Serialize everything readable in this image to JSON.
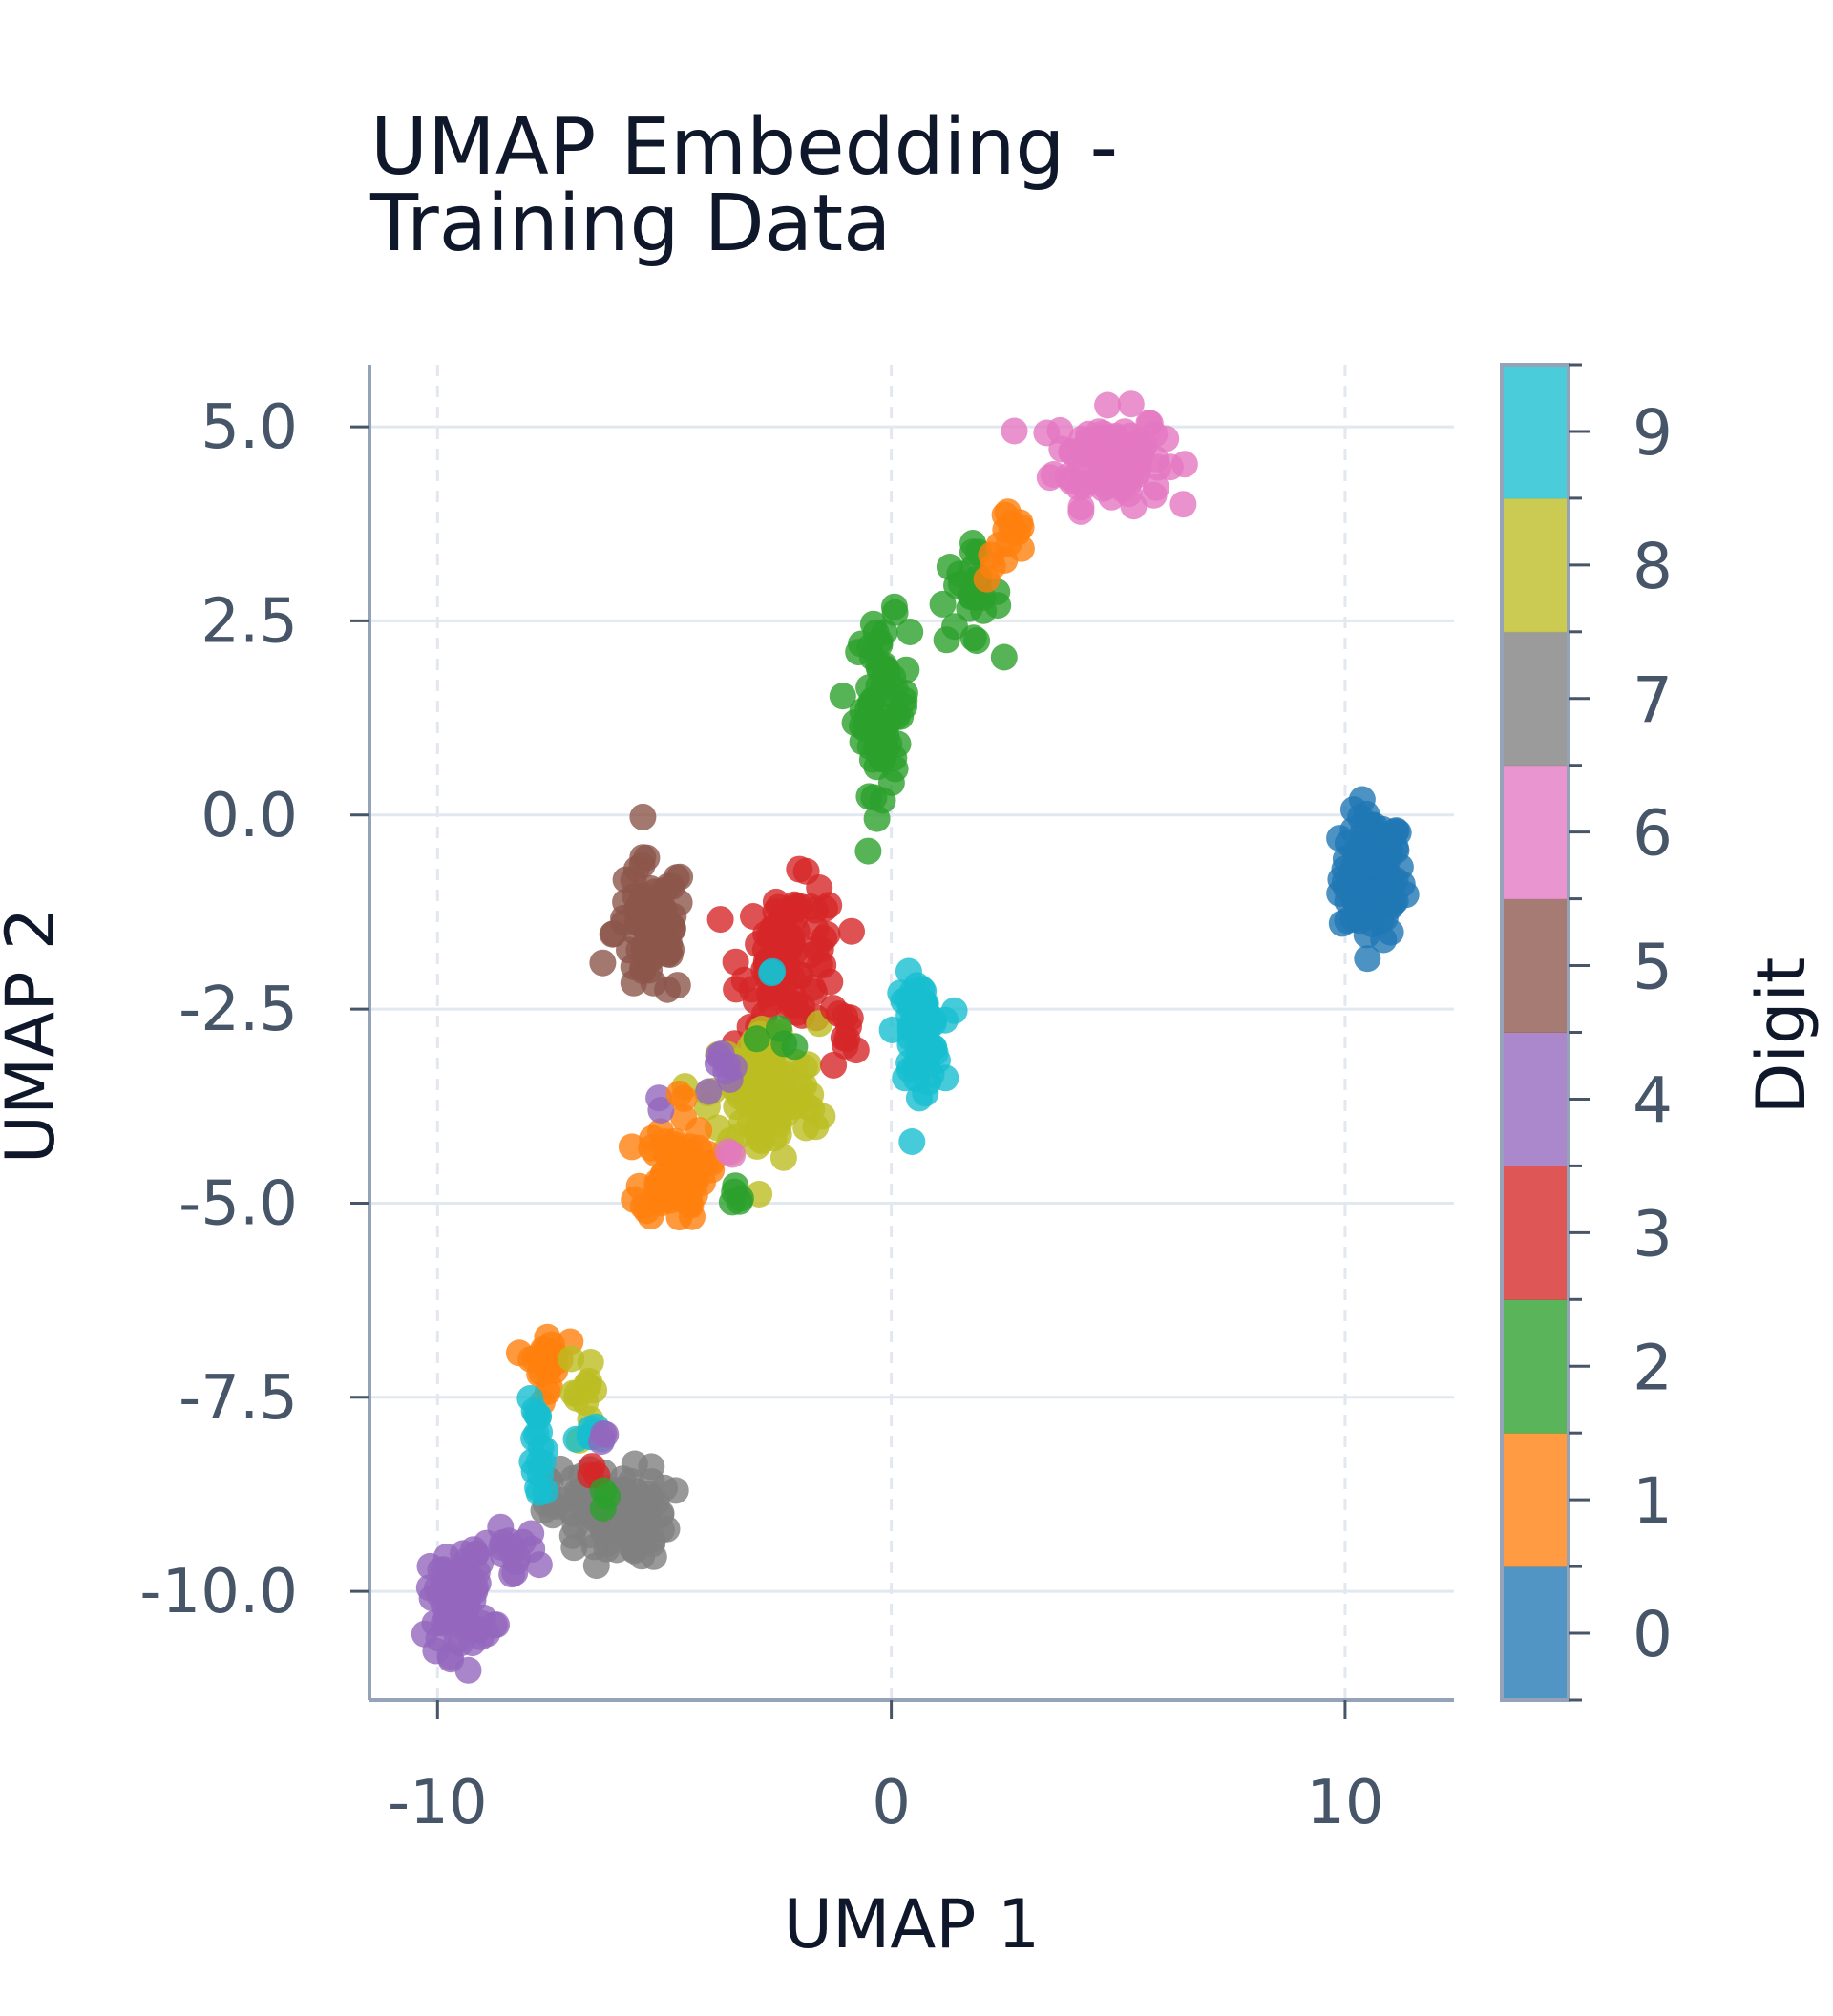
{
  "chart_data": {
    "type": "scatter",
    "title_lines": [
      "UMAP Embedding -",
      "Training Data"
    ],
    "xlabel": "UMAP 1",
    "ylabel": "UMAP 2",
    "xlim": [
      -11.5,
      12.4
    ],
    "ylim": [
      -11.4,
      5.8
    ],
    "xticks": [
      -10,
      0,
      10
    ],
    "xtick_labels": [
      "-10",
      "0",
      "10"
    ],
    "yticks": [
      5.0,
      2.5,
      0.0,
      -2.5,
      -5.0,
      -7.5,
      -10.0
    ],
    "ytick_labels": [
      "5.0",
      "2.5",
      "0.0",
      "-2.5",
      "-5.0",
      "-7.5",
      "-10.0"
    ],
    "grid": true,
    "colorbar": {
      "label": "Digit",
      "ticks": [
        "0",
        "1",
        "2",
        "3",
        "4",
        "5",
        "6",
        "7",
        "8",
        "9"
      ],
      "colors": [
        "#1f77b4",
        "#ff7f0e",
        "#2ca02c",
        "#d62728",
        "#9467bd",
        "#8c564b",
        "#e377c2",
        "#7f7f7f",
        "#bcbd22",
        "#17becf"
      ]
    },
    "clusters": [
      {
        "digit": 0,
        "cx": 10.6,
        "cy": -0.8,
        "sx": 0.35,
        "sy": 0.4,
        "n": 120
      },
      {
        "digit": 6,
        "cx": 4.8,
        "cy": 4.6,
        "sx": 0.6,
        "sy": 0.3,
        "n": 110
      },
      {
        "digit": 2,
        "cx": -0.2,
        "cy": 1.4,
        "sx": 0.3,
        "sy": 0.55,
        "n": 70
      },
      {
        "digit": 2,
        "cx": 1.7,
        "cy": 2.8,
        "sx": 0.35,
        "sy": 0.3,
        "n": 25
      },
      {
        "digit": 1,
        "cx": 2.6,
        "cy": 3.5,
        "sx": 0.25,
        "sy": 0.25,
        "n": 15
      },
      {
        "digit": 5,
        "cx": -5.3,
        "cy": -1.5,
        "sx": 0.4,
        "sy": 0.45,
        "n": 80
      },
      {
        "digit": 3,
        "cx": -2.2,
        "cy": -1.8,
        "sx": 0.55,
        "sy": 0.45,
        "n": 90
      },
      {
        "digit": 9,
        "cx": 0.6,
        "cy": -2.8,
        "sx": 0.25,
        "sy": 0.35,
        "n": 60
      },
      {
        "digit": 8,
        "cx": -2.8,
        "cy": -3.6,
        "sx": 0.6,
        "sy": 0.45,
        "n": 120
      },
      {
        "digit": 1,
        "cx": -4.8,
        "cy": -4.6,
        "sx": 0.35,
        "sy": 0.3,
        "n": 80
      },
      {
        "digit": 7,
        "cx": -6.2,
        "cy": -9.0,
        "sx": 0.65,
        "sy": 0.3,
        "n": 110
      },
      {
        "digit": 4,
        "cx": -9.5,
        "cy": -10.1,
        "sx": 0.35,
        "sy": 0.35,
        "n": 80
      },
      {
        "digit": 4,
        "cx": -8.4,
        "cy": -9.5,
        "sx": 0.3,
        "sy": 0.15,
        "n": 15
      },
      {
        "digit": 1,
        "cx": -7.6,
        "cy": -7.0,
        "sx": 0.2,
        "sy": 0.18,
        "n": 30
      },
      {
        "digit": 9,
        "cx": -7.8,
        "cy": -8.3,
        "sx": 0.1,
        "sy": 0.35,
        "n": 18
      },
      {
        "digit": 8,
        "cx": -6.8,
        "cy": -7.4,
        "sx": 0.15,
        "sy": 0.25,
        "n": 12
      },
      {
        "digit": 9,
        "cx": -6.5,
        "cy": -8.0,
        "sx": 0.2,
        "sy": 0.08,
        "n": 8
      },
      {
        "digit": 4,
        "cx": -6.3,
        "cy": -8.0,
        "sx": 0.1,
        "sy": 0.05,
        "n": 3
      },
      {
        "digit": 3,
        "cx": -6.5,
        "cy": -8.5,
        "sx": 0.08,
        "sy": 0.08,
        "n": 3
      },
      {
        "digit": 2,
        "cx": -6.3,
        "cy": -8.8,
        "sx": 0.1,
        "sy": 0.08,
        "n": 3
      },
      {
        "digit": 3,
        "cx": -1.0,
        "cy": -2.8,
        "sx": 0.2,
        "sy": 0.15,
        "n": 10
      },
      {
        "digit": 4,
        "cx": -3.6,
        "cy": -3.3,
        "sx": 0.15,
        "sy": 0.15,
        "n": 8
      },
      {
        "digit": 2,
        "cx": -3.3,
        "cy": -4.9,
        "sx": 0.15,
        "sy": 0.12,
        "n": 5
      },
      {
        "digit": 2,
        "cx": -2.4,
        "cy": -2.9,
        "sx": 0.15,
        "sy": 0.1,
        "n": 4
      },
      {
        "digit": 4,
        "cx": -5.1,
        "cy": -3.7,
        "sx": 0.05,
        "sy": 0.05,
        "n": 2
      },
      {
        "digit": 6,
        "cx": -3.5,
        "cy": -4.4,
        "sx": 0.05,
        "sy": 0.05,
        "n": 2
      },
      {
        "digit": 9,
        "cx": -2.6,
        "cy": -2.0,
        "sx": 0.05,
        "sy": 0.05,
        "n": 2
      },
      {
        "digit": 1,
        "cx": -4.7,
        "cy": -3.6,
        "sx": 0.05,
        "sy": 0.05,
        "n": 2
      }
    ]
  }
}
